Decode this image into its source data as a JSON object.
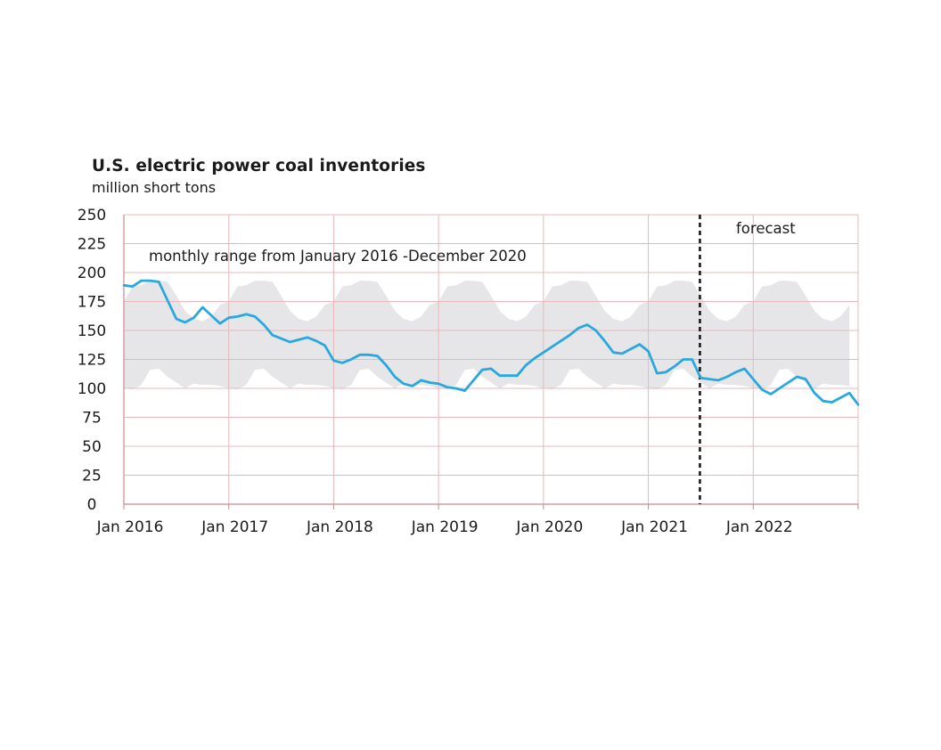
{
  "chart_data": {
    "type": "line",
    "title": "U.S. electric power coal inventories",
    "subtitle": "million short tons",
    "xlabel": "",
    "ylabel": "",
    "ylim": [
      0,
      250
    ],
    "yticks": [
      "0",
      "25",
      "50",
      "75",
      "100",
      "125",
      "150",
      "175",
      "200",
      "225",
      "250"
    ],
    "xticks": [
      "Jan 2016",
      "Jan 2017",
      "Jan 2018",
      "Jan 2019",
      "Jan 2020",
      "Jan 2021",
      "Jan 2022"
    ],
    "x_start": "Jan 2016",
    "x_end": "Dec 2022",
    "grid": true,
    "forecast_start": "Jul 2021",
    "annotations": {
      "range_label": "monthly range from January 2016 -December 2020",
      "forecast_label": "forecast"
    },
    "colors": {
      "series": "#29a8e0",
      "range_band": "#e6e6e8",
      "grid": "#e8b7bb",
      "axis": "#c98a8f",
      "forecast_line": "#1a1a1a"
    },
    "range_band": {
      "name": "monthly range from January 2016 -December 2020",
      "months": [
        "Jan",
        "Feb",
        "Mar",
        "Apr",
        "May",
        "Jun",
        "Jul",
        "Aug",
        "Sep",
        "Oct",
        "Nov",
        "Dec"
      ],
      "max": [
        175,
        188,
        189,
        193,
        193,
        192,
        180,
        167,
        160,
        158,
        162,
        172
      ],
      "min": [
        100,
        99,
        103,
        116,
        117,
        110,
        105,
        100,
        104,
        103,
        103,
        102
      ]
    },
    "series": [
      {
        "values": [
          189,
          188,
          193,
          193,
          192,
          176,
          160,
          157,
          161,
          170,
          163,
          156,
          161,
          162,
          164,
          162,
          155,
          146,
          143,
          140,
          142,
          144,
          141,
          137,
          124,
          122,
          125,
          129,
          129,
          128,
          120,
          110,
          104,
          102,
          107,
          105,
          104,
          101,
          100,
          98,
          107,
          116,
          117,
          111,
          111,
          111,
          120,
          126,
          131,
          136,
          141,
          146,
          152,
          155,
          150,
          141,
          131,
          130,
          134,
          138,
          132,
          113,
          114,
          119,
          125,
          125,
          109,
          108,
          107,
          110,
          114,
          117,
          108,
          99,
          95,
          100,
          105,
          110,
          108,
          96,
          89,
          88,
          92,
          96,
          86
        ]
      }
    ]
  }
}
